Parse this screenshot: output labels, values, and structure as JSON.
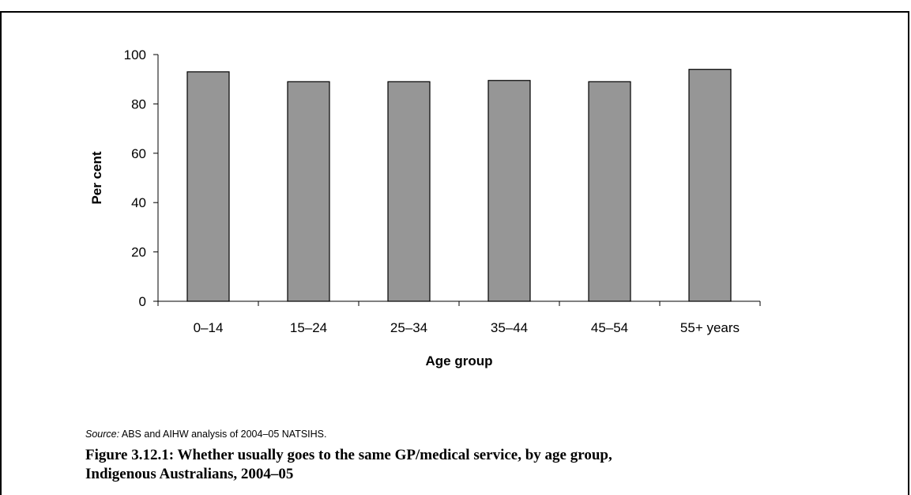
{
  "chart_data": {
    "type": "bar",
    "categories": [
      "0–14",
      "15–24",
      "25–34",
      "35–44",
      "45–54",
      "55+ years"
    ],
    "values": [
      93,
      89,
      89,
      89.5,
      89,
      94
    ],
    "xlabel": "Age group",
    "ylabel": "Per cent",
    "ylim": [
      0,
      100
    ],
    "yticks": [
      0,
      20,
      40,
      60,
      80,
      100
    ],
    "bar_color": "#969696",
    "grid": false,
    "legend": "none"
  },
  "source": {
    "label": "Source:",
    "text": " ABS and AIHW analysis of 2004–05 NATSIHS."
  },
  "caption": {
    "line1": "Figure 3.12.1: Whether usually goes to the same GP/medical service, by age group,",
    "line2": "Indigenous Australians, 2004–05"
  }
}
